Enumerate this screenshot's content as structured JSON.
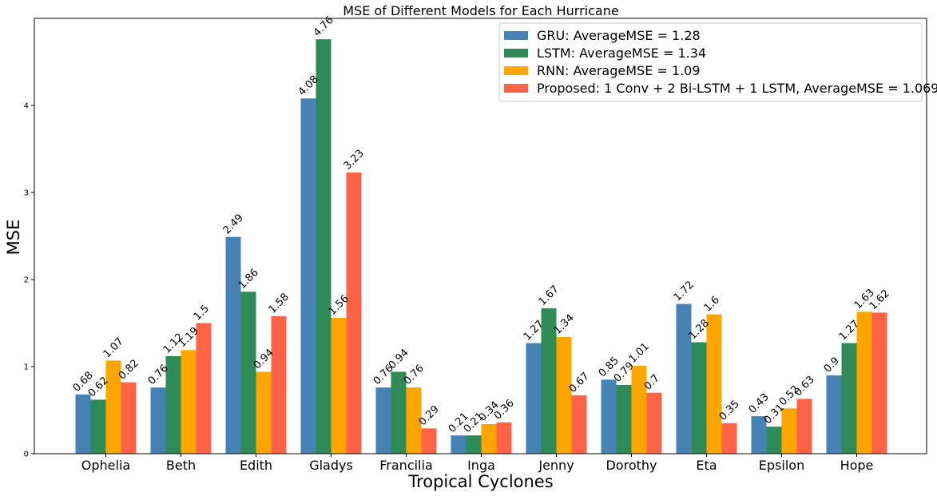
{
  "chart_data": {
    "type": "bar",
    "title": "MSE of Different Models for Each Hurricane",
    "xlabel": "Tropical Cyclones",
    "ylabel": "MSE",
    "ylim": [
      0,
      5.0
    ],
    "yticks": [
      0,
      1,
      2,
      3,
      4
    ],
    "grid": false,
    "legend_position": "top-right",
    "categories": [
      "Ophelia",
      "Beth",
      "Edith",
      "Gladys",
      "Francilia",
      "Inga",
      "Jenny",
      "Dorothy",
      "Eta",
      "Epsilon",
      "Hope"
    ],
    "series": [
      {
        "name": "GRU: AverageMSE = 1.28",
        "color": "#4682b4",
        "values": [
          0.68,
          0.76,
          2.49,
          4.08,
          0.76,
          0.21,
          1.27,
          0.85,
          1.72,
          0.43,
          0.9
        ]
      },
      {
        "name": "LSTM: AverageMSE = 1.34",
        "color": "#2e8b57",
        "values": [
          0.62,
          1.12,
          1.86,
          4.76,
          0.94,
          0.21,
          1.67,
          0.79,
          1.28,
          0.31,
          1.27
        ]
      },
      {
        "name": "RNN: AverageMSE = 1.09",
        "color": "#ffa500",
        "values": [
          1.07,
          1.19,
          0.94,
          1.56,
          0.76,
          0.34,
          1.34,
          1.01,
          1.6,
          0.52,
          1.63
        ]
      },
      {
        "name": "Proposed: 1 Conv + 2 Bi-LSTM + 1 LSTM, AverageMSE = 1.069",
        "color": "#ff6347",
        "values": [
          0.82,
          1.5,
          1.58,
          3.23,
          0.29,
          0.36,
          0.67,
          0.7,
          0.35,
          0.63,
          1.62
        ]
      }
    ]
  }
}
